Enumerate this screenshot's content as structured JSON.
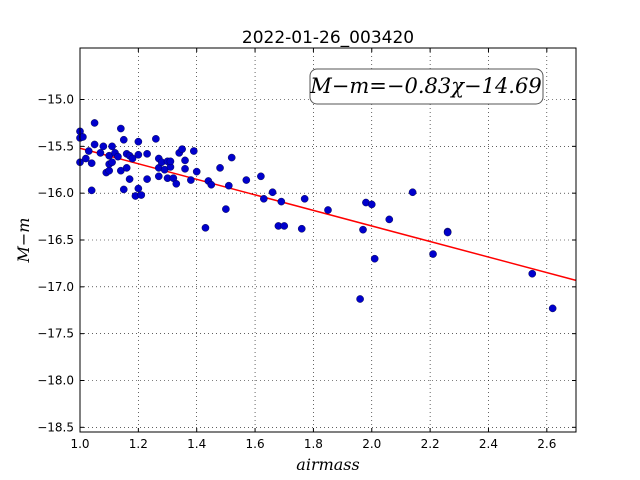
{
  "chart_data": {
    "type": "scatter",
    "title": "2022-01-26_003420",
    "xlabel": "airmass",
    "ylabel": "M−m",
    "xlim": [
      1.0,
      2.7
    ],
    "ylim": [
      -18.55,
      -14.45
    ],
    "y_inverted": true,
    "grid": true,
    "xticks": [
      1.0,
      1.2,
      1.4,
      1.6,
      1.8,
      2.0,
      2.2,
      2.4,
      2.6
    ],
    "xtick_labels": [
      "1.0",
      "1.2",
      "1.4",
      "1.6",
      "1.8",
      "2.0",
      "2.2",
      "2.4",
      "2.6"
    ],
    "yticks": [
      -15.0,
      -15.5,
      -16.0,
      -16.5,
      -17.0,
      -17.5,
      -18.0,
      -18.5
    ],
    "ytick_labels": [
      "−15.0",
      "−15.5",
      "−16.0",
      "−16.5",
      "−17.0",
      "−17.5",
      "−18.0",
      "−18.5"
    ],
    "annotation": "M−m=−0.83χ−14.69",
    "fit": {
      "slope": -0.83,
      "intercept": -14.69,
      "color": "#ff0000"
    },
    "point_color": "#0000cc",
    "points": [
      [
        1.0,
        -15.34
      ],
      [
        1.0,
        -15.41
      ],
      [
        1.0,
        -15.67
      ],
      [
        1.01,
        -15.4
      ],
      [
        1.02,
        -15.63
      ],
      [
        1.03,
        -15.55
      ],
      [
        1.04,
        -15.68
      ],
      [
        1.04,
        -15.97
      ],
      [
        1.05,
        -15.48
      ],
      [
        1.05,
        -15.25
      ],
      [
        1.07,
        -15.57
      ],
      [
        1.08,
        -15.5
      ],
      [
        1.09,
        -15.78
      ],
      [
        1.1,
        -15.6
      ],
      [
        1.1,
        -15.69
      ],
      [
        1.1,
        -15.76
      ],
      [
        1.11,
        -15.67
      ],
      [
        1.11,
        -15.5
      ],
      [
        1.12,
        -15.57
      ],
      [
        1.13,
        -15.61
      ],
      [
        1.14,
        -15.31
      ],
      [
        1.14,
        -15.76
      ],
      [
        1.15,
        -15.43
      ],
      [
        1.15,
        -15.96
      ],
      [
        1.16,
        -15.58
      ],
      [
        1.16,
        -15.73
      ],
      [
        1.17,
        -15.85
      ],
      [
        1.17,
        -15.6
      ],
      [
        1.18,
        -15.63
      ],
      [
        1.19,
        -16.03
      ],
      [
        1.2,
        -15.59
      ],
      [
        1.2,
        -15.45
      ],
      [
        1.2,
        -15.95
      ],
      [
        1.21,
        -16.02
      ],
      [
        1.23,
        -15.85
      ],
      [
        1.23,
        -15.58
      ],
      [
        1.26,
        -15.42
      ],
      [
        1.27,
        -15.63
      ],
      [
        1.27,
        -15.73
      ],
      [
        1.27,
        -15.82
      ],
      [
        1.28,
        -15.67
      ],
      [
        1.29,
        -15.75
      ],
      [
        1.3,
        -15.66
      ],
      [
        1.3,
        -15.84
      ],
      [
        1.31,
        -15.72
      ],
      [
        1.31,
        -15.66
      ],
      [
        1.32,
        -15.84
      ],
      [
        1.33,
        -15.9
      ],
      [
        1.34,
        -15.57
      ],
      [
        1.35,
        -15.53
      ],
      [
        1.36,
        -15.65
      ],
      [
        1.36,
        -15.74
      ],
      [
        1.38,
        -15.86
      ],
      [
        1.39,
        -15.55
      ],
      [
        1.4,
        -15.77
      ],
      [
        1.43,
        -16.37
      ],
      [
        1.44,
        -15.87
      ],
      [
        1.45,
        -15.91
      ],
      [
        1.48,
        -15.73
      ],
      [
        1.5,
        -16.17
      ],
      [
        1.51,
        -15.92
      ],
      [
        1.52,
        -15.62
      ],
      [
        1.57,
        -15.86
      ],
      [
        1.62,
        -15.82
      ],
      [
        1.63,
        -16.06
      ],
      [
        1.66,
        -15.99
      ],
      [
        1.68,
        -16.35
      ],
      [
        1.69,
        -16.09
      ],
      [
        1.7,
        -16.35
      ],
      [
        1.76,
        -16.38
      ],
      [
        1.77,
        -16.06
      ],
      [
        1.85,
        -16.18
      ],
      [
        1.96,
        -17.13
      ],
      [
        1.97,
        -16.39
      ],
      [
        1.98,
        -16.1
      ],
      [
        2.0,
        -16.12
      ],
      [
        2.01,
        -16.7
      ],
      [
        2.06,
        -16.28
      ],
      [
        2.14,
        -15.99
      ],
      [
        2.21,
        -16.65
      ],
      [
        2.26,
        -16.41
      ],
      [
        2.26,
        -16.42
      ],
      [
        2.55,
        -16.86
      ],
      [
        2.62,
        -17.23
      ]
    ]
  }
}
